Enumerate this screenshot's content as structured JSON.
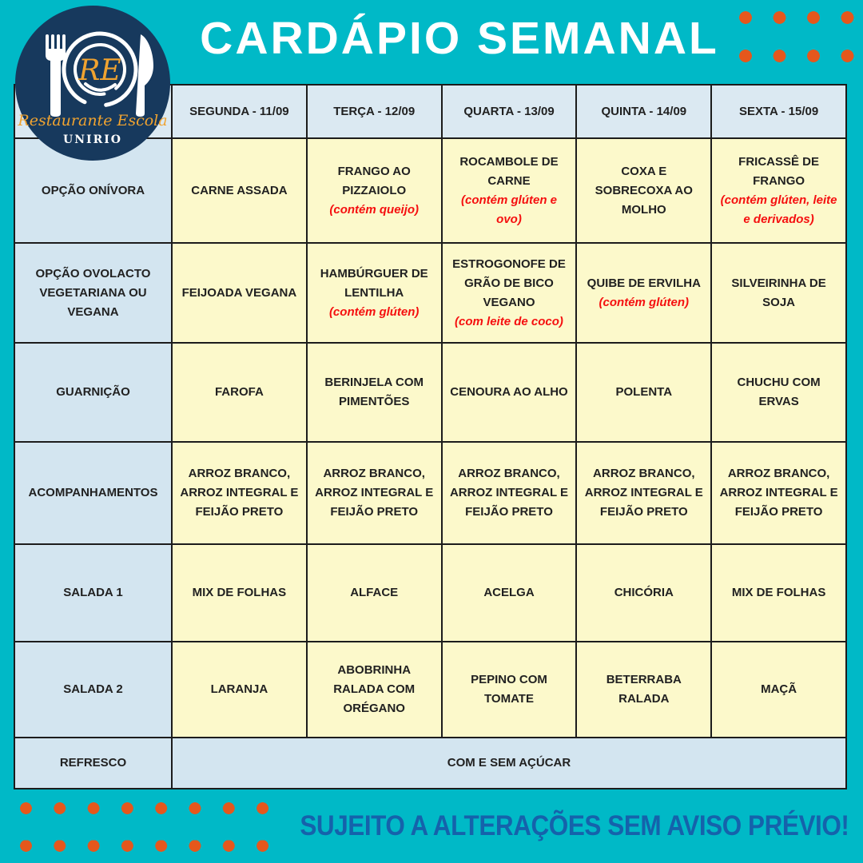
{
  "theme": {
    "teal": "#00b9c7",
    "navy": "#17395d",
    "orange_dot": "#e5571c",
    "logo_orange": "#f0a330",
    "cell_yellow": "#fcf9cb",
    "cell_blue_header": "#dbe9f2",
    "cell_blue_label": "#d3e5f0",
    "border_dark": "#1c1c1c",
    "text_dark": "#212121",
    "allergen_red": "#f50f0f",
    "notice_blue": "#1562ab"
  },
  "header": {
    "title": "CARDÁPIO SEMANAL"
  },
  "logo": {
    "initials": "RE",
    "name": "Restaurante Escola",
    "org": "UNIRIO"
  },
  "table": {
    "days": [
      "SEGUNDA - 11/09",
      "TERÇA - 12/09",
      "QUARTA - 13/09",
      "QUINTA - 14/09",
      "SEXTA - 15/09"
    ],
    "rows": [
      {
        "label": "OPÇÃO ONÍVORA",
        "cells": [
          {
            "text": "CARNE ASSADA"
          },
          {
            "text": "FRANGO AO PIZZAIOLO",
            "note": "(contém queijo)"
          },
          {
            "text": "ROCAMBOLE DE CARNE",
            "note": "(contém glúten e ovo)"
          },
          {
            "text": "COXA E SOBRECOXA AO MOLHO"
          },
          {
            "text": "FRICASSÊ DE FRANGO",
            "note": "(contém glúten, leite e derivados)"
          }
        ]
      },
      {
        "label": "OPÇÃO OVOLACTO VEGETARIANA OU VEGANA",
        "cells": [
          {
            "text": "FEIJOADA VEGANA"
          },
          {
            "text": "HAMBÚRGUER DE LENTILHA",
            "note": "(contém glúten)"
          },
          {
            "text": "ESTROGONOFE DE GRÃO DE BICO VEGANO",
            "note": "(com leite de coco)"
          },
          {
            "text": "QUIBE DE ERVILHA",
            "note": "(contém glúten)"
          },
          {
            "text": "SILVEIRINHA DE SOJA"
          }
        ]
      },
      {
        "label": "GUARNIÇÃO",
        "cells": [
          {
            "text": "FAROFA"
          },
          {
            "text": "BERINJELA COM PIMENTÕES"
          },
          {
            "text": "CENOURA AO ALHO"
          },
          {
            "text": "POLENTA"
          },
          {
            "text": "CHUCHU COM ERVAS"
          }
        ]
      },
      {
        "label": "ACOMPANHAMENTOS",
        "cells": [
          {
            "text": "ARROZ BRANCO, ARROZ INTEGRAL E FEIJÃO PRETO"
          },
          {
            "text": "ARROZ BRANCO, ARROZ INTEGRAL E FEIJÃO PRETO"
          },
          {
            "text": "ARROZ BRANCO, ARROZ INTEGRAL E FEIJÃO PRETO"
          },
          {
            "text": "ARROZ BRANCO, ARROZ INTEGRAL E FEIJÃO PRETO"
          },
          {
            "text": "ARROZ BRANCO, ARROZ INTEGRAL E FEIJÃO PRETO"
          }
        ]
      },
      {
        "label": "SALADA 1",
        "cells": [
          {
            "text": "MIX DE FOLHAS"
          },
          {
            "text": "ALFACE"
          },
          {
            "text": "ACELGA"
          },
          {
            "text": "CHICÓRIA"
          },
          {
            "text": "MIX DE FOLHAS"
          }
        ]
      },
      {
        "label": "SALADA 2",
        "cells": [
          {
            "text": "LARANJA"
          },
          {
            "text": "ABOBRINHA RALADA COM ORÉGANO"
          },
          {
            "text": "PEPINO COM TOMATE"
          },
          {
            "text": "BETERRABA RALADA"
          },
          {
            "text": "MAÇÃ"
          }
        ]
      }
    ],
    "footer_row": {
      "label": "REFRESCO",
      "merged": "COM E SEM AÇÚCAR"
    }
  },
  "footer": {
    "notice": "SUJEITO A ALTERAÇÕES SEM AVISO PRÉVIO!"
  }
}
